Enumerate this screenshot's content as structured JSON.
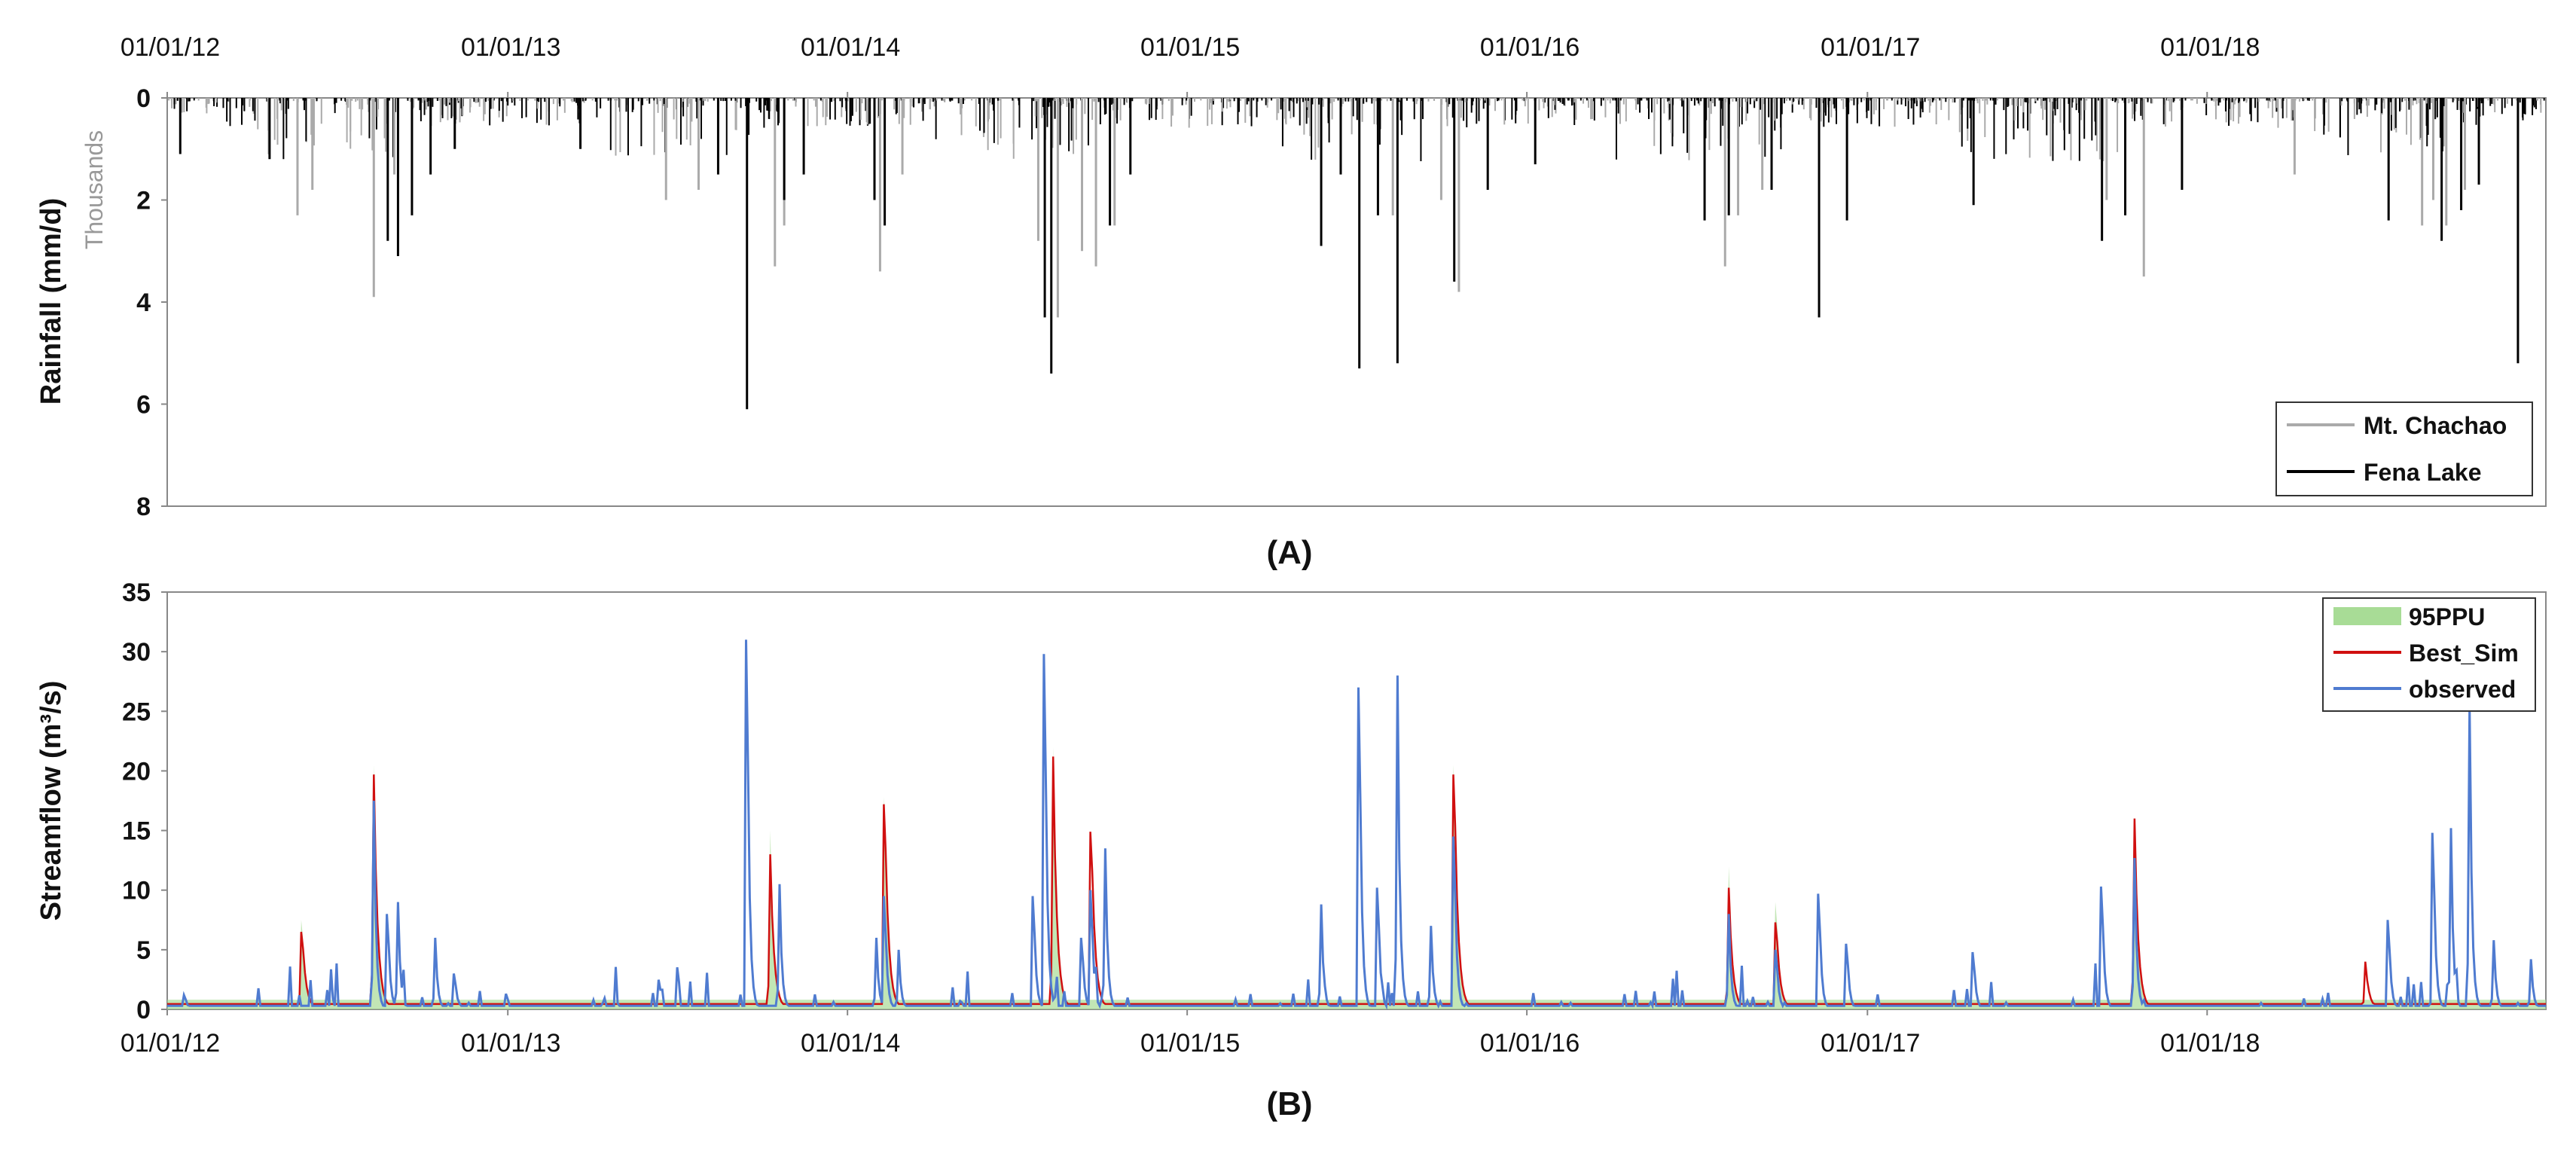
{
  "chart_data": [
    {
      "type": "bar",
      "orientation": "inverted-down",
      "panel_label": "(A)",
      "ylabel": "Rainfall (mm/d)",
      "y_unit_note": "Thousands",
      "ylim": [
        0,
        8
      ],
      "y_ticks": [
        "0",
        "2",
        "4",
        "6",
        "8"
      ],
      "x_axis_position": "top",
      "x_ticks": [
        "01/01/12",
        "01/01/13",
        "01/01/14",
        "01/01/15",
        "01/01/16",
        "01/01/17",
        "01/01/18"
      ],
      "x_range": [
        "2012-01-01",
        "2018-12-31"
      ],
      "grid": false,
      "legend": {
        "position": "bottom-right",
        "entries": [
          "Mt. Chachao",
          "Fena Lake"
        ]
      },
      "series": [
        {
          "name": "Mt. Chachao",
          "color": "#aaaaaa",
          "points": [
            [
              "2012-05-20",
              2.3
            ],
            [
              "2012-06-05",
              1.8
            ],
            [
              "2012-08-10",
              3.9
            ],
            [
              "2012-09-01",
              1.5
            ],
            [
              "2013-06-20",
              2.0
            ],
            [
              "2013-07-25",
              1.8
            ],
            [
              "2013-10-15",
              3.3
            ],
            [
              "2013-10-25",
              2.5
            ],
            [
              "2014-02-05",
              3.4
            ],
            [
              "2014-03-01",
              1.5
            ],
            [
              "2014-07-25",
              2.8
            ],
            [
              "2014-08-15",
              4.3
            ],
            [
              "2014-09-10",
              3.0
            ],
            [
              "2014-09-25",
              3.3
            ],
            [
              "2014-10-15",
              2.5
            ],
            [
              "2015-08-10",
              2.3
            ],
            [
              "2015-10-01",
              2.0
            ],
            [
              "2015-10-20",
              3.8
            ],
            [
              "2016-08-01",
              3.3
            ],
            [
              "2016-08-15",
              2.3
            ],
            [
              "2016-09-10",
              1.8
            ],
            [
              "2017-09-15",
              2.0
            ],
            [
              "2017-10-25",
              3.5
            ],
            [
              "2018-04-05",
              1.5
            ],
            [
              "2018-08-20",
              2.5
            ],
            [
              "2018-09-01",
              2.0
            ],
            [
              "2018-09-15",
              2.5
            ],
            [
              "2018-10-05",
              1.8
            ]
          ]
        },
        {
          "name": "Fena Lake",
          "color": "#000000",
          "points": [
            [
              "2012-01-15",
              1.1
            ],
            [
              "2012-04-20",
              1.2
            ],
            [
              "2012-08-25",
              2.8
            ],
            [
              "2012-09-05",
              3.1
            ],
            [
              "2012-09-20",
              2.3
            ],
            [
              "2012-10-10",
              1.5
            ],
            [
              "2012-11-05",
              1.0
            ],
            [
              "2013-03-20",
              1.0
            ],
            [
              "2013-08-15",
              1.5
            ],
            [
              "2013-09-15",
              6.1
            ],
            [
              "2013-10-25",
              2.0
            ],
            [
              "2013-11-15",
              1.5
            ],
            [
              "2014-01-30",
              2.0
            ],
            [
              "2014-02-10",
              2.5
            ],
            [
              "2014-08-01",
              4.3
            ],
            [
              "2014-08-08",
              5.4
            ],
            [
              "2014-10-10",
              2.5
            ],
            [
              "2014-11-01",
              1.5
            ],
            [
              "2015-05-25",
              2.9
            ],
            [
              "2015-06-15",
              1.5
            ],
            [
              "2015-07-05",
              5.3
            ],
            [
              "2015-07-25",
              2.3
            ],
            [
              "2015-08-15",
              5.2
            ],
            [
              "2015-10-15",
              3.6
            ],
            [
              "2015-11-20",
              1.8
            ],
            [
              "2016-01-10",
              1.3
            ],
            [
              "2016-07-10",
              2.4
            ],
            [
              "2016-08-05",
              2.3
            ],
            [
              "2016-09-20",
              1.8
            ],
            [
              "2016-11-10",
              4.3
            ],
            [
              "2016-12-10",
              2.4
            ],
            [
              "2017-04-25",
              2.1
            ],
            [
              "2017-09-10",
              2.8
            ],
            [
              "2017-10-05",
              2.3
            ],
            [
              "2017-12-05",
              1.8
            ],
            [
              "2018-07-15",
              2.4
            ],
            [
              "2018-09-10",
              2.8
            ],
            [
              "2018-10-01",
              2.2
            ],
            [
              "2018-10-20",
              1.7
            ],
            [
              "2018-12-01",
              5.2
            ]
          ]
        }
      ]
    },
    {
      "type": "line",
      "panel_label": "(B)",
      "ylabel": "Streamflow (m³/s)",
      "ylim": [
        0,
        35
      ],
      "y_ticks": [
        "0",
        "5",
        "10",
        "15",
        "20",
        "25",
        "30",
        "35"
      ],
      "x_axis_position": "bottom",
      "x_ticks": [
        "01/01/12",
        "01/01/13",
        "01/01/14",
        "01/01/15",
        "01/01/16",
        "01/01/17",
        "01/01/18"
      ],
      "x_range": [
        "2012-01-01",
        "2018-12-31"
      ],
      "grid": false,
      "legend": {
        "position": "top-right",
        "entries": [
          "95PPU",
          "Best_Sim",
          "observed"
        ]
      },
      "series": [
        {
          "name": "95PPU",
          "color": "#8fd07a",
          "points": [
            [
              "2012-05-25",
              7.5
            ],
            [
              "2012-08-10",
              20.5
            ],
            [
              "2013-10-10",
              15.0
            ],
            [
              "2014-02-10",
              17.8
            ],
            [
              "2014-08-10",
              22.0
            ],
            [
              "2015-10-15",
              20.5
            ],
            [
              "2016-08-05",
              12.0
            ],
            [
              "2016-09-25",
              9.0
            ],
            [
              "2017-10-15",
              16.0
            ]
          ]
        },
        {
          "name": "Best_Sim",
          "color": "#d01010",
          "points": [
            [
              "2012-05-25",
              6.5
            ],
            [
              "2012-08-10",
              19.7
            ],
            [
              "2013-10-10",
              13.0
            ],
            [
              "2014-02-10",
              17.2
            ],
            [
              "2014-08-10",
              21.2
            ],
            [
              "2014-09-20",
              14.9
            ],
            [
              "2015-10-15",
              19.7
            ],
            [
              "2016-08-05",
              10.2
            ],
            [
              "2016-09-25",
              7.3
            ],
            [
              "2017-10-15",
              16.0
            ],
            [
              "2018-06-20",
              4.0
            ]
          ]
        },
        {
          "name": "observed",
          "color": "#4f7bd0",
          "points": [
            [
              "2012-01-20",
              1.2
            ],
            [
              "2012-08-10",
              17.5
            ],
            [
              "2012-08-25",
              8.0
            ],
            [
              "2012-09-05",
              9.0
            ],
            [
              "2012-10-15",
              6.0
            ],
            [
              "2012-11-05",
              3.0
            ],
            [
              "2013-09-15",
              31.0
            ],
            [
              "2013-10-20",
              10.5
            ],
            [
              "2014-02-01",
              6.0
            ],
            [
              "2014-02-10",
              9.5
            ],
            [
              "2014-02-25",
              5.0
            ],
            [
              "2014-07-20",
              9.5
            ],
            [
              "2014-08-01",
              29.8
            ],
            [
              "2014-09-10",
              6.0
            ],
            [
              "2014-09-20",
              10.0
            ],
            [
              "2014-10-05",
              13.5
            ],
            [
              "2015-05-25",
              8.8
            ],
            [
              "2015-07-05",
              27.0
            ],
            [
              "2015-07-25",
              10.2
            ],
            [
              "2015-08-15",
              28.0
            ],
            [
              "2015-09-20",
              7.0
            ],
            [
              "2015-10-15",
              14.5
            ],
            [
              "2016-08-05",
              8.0
            ],
            [
              "2016-09-25",
              5.0
            ],
            [
              "2016-11-10",
              9.7
            ],
            [
              "2016-12-10",
              5.5
            ],
            [
              "2017-04-25",
              4.8
            ],
            [
              "2017-09-10",
              10.3
            ],
            [
              "2017-10-15",
              12.7
            ],
            [
              "2018-07-15",
              7.5
            ],
            [
              "2018-09-01",
              14.8
            ],
            [
              "2018-09-20",
              15.2
            ],
            [
              "2018-10-10",
              25.5
            ],
            [
              "2018-11-05",
              5.8
            ],
            [
              "2018-12-15",
              4.2
            ]
          ]
        }
      ]
    }
  ]
}
